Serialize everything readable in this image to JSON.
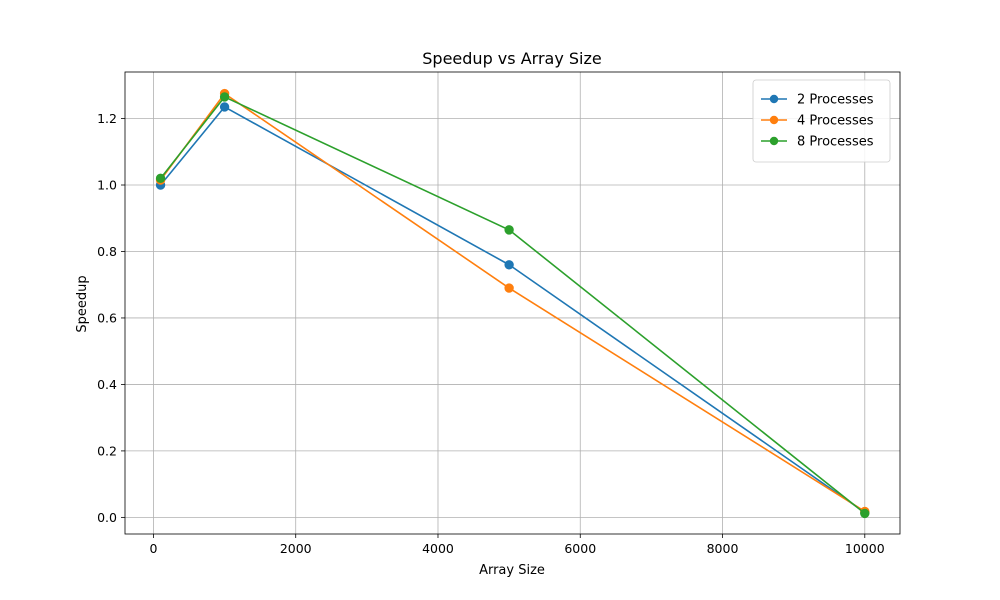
{
  "chart_data": {
    "type": "line",
    "title": "Speedup vs Array Size",
    "xlabel": "Array Size",
    "ylabel": "Speedup",
    "x": [
      100,
      1000,
      5000,
      10000
    ],
    "series": [
      {
        "name": "2 Processes",
        "color": "#1f77b4",
        "values": [
          1.0,
          1.235,
          0.76,
          0.015
        ]
      },
      {
        "name": "4 Processes",
        "color": "#ff7f0e",
        "values": [
          1.015,
          1.275,
          0.69,
          0.018
        ]
      },
      {
        "name": "8 Processes",
        "color": "#2ca02c",
        "values": [
          1.02,
          1.265,
          0.865,
          0.012
        ]
      }
    ],
    "xlim": [
      -400,
      10495
    ],
    "ylim": [
      -0.05,
      1.34
    ],
    "xticks": [
      0,
      2000,
      4000,
      6000,
      8000,
      10000
    ],
    "yticks": [
      0.0,
      0.2,
      0.4,
      0.6,
      0.8,
      1.0,
      1.2
    ],
    "xtick_labels": [
      "0",
      "2000",
      "4000",
      "6000",
      "8000",
      "10000"
    ],
    "ytick_labels": [
      "0.0",
      "0.2",
      "0.4",
      "0.6",
      "0.8",
      "1.0",
      "1.2"
    ],
    "grid": true,
    "legend_position": "top-right",
    "marker": "circle"
  }
}
